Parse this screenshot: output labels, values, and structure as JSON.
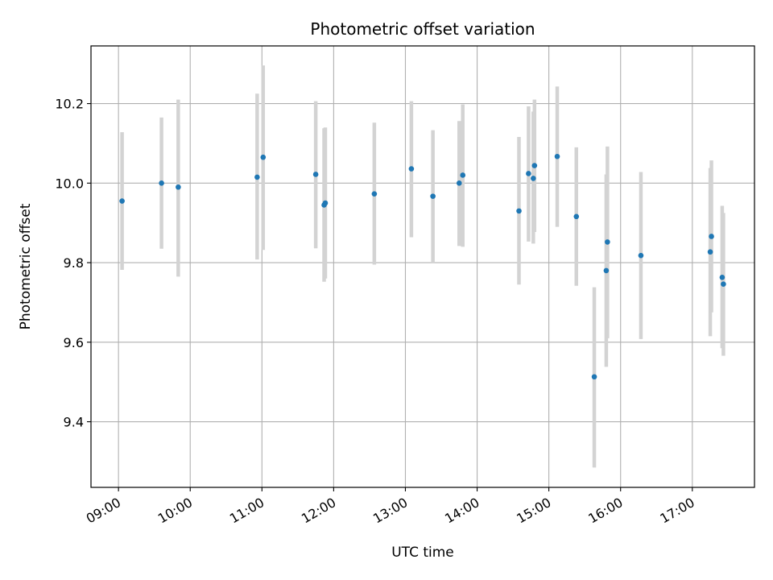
{
  "chart_data": {
    "type": "scatter",
    "title": "Photometric offset variation",
    "xlabel": "UTC time",
    "ylabel": "Photometric offset",
    "x_ticks": [
      "09:00",
      "10:00",
      "11:00",
      "12:00",
      "13:00",
      "14:00",
      "15:00",
      "16:00",
      "17:00"
    ],
    "y_ticks": [
      "9.4",
      "9.6",
      "9.8",
      "10.0",
      "10.2"
    ],
    "xlim": [
      "08:37",
      "17:52"
    ],
    "ylim": [
      9.235,
      10.345
    ],
    "grid": true,
    "colors": {
      "point": "#1f77b4",
      "errorbar": "#d3d3d3",
      "grid": "#b0b0b0"
    },
    "points": [
      {
        "x": "09:03",
        "y": 9.955,
        "low": 9.782,
        "high": 10.128
      },
      {
        "x": "09:36",
        "y": 10.0,
        "low": 9.835,
        "high": 10.165
      },
      {
        "x": "09:50",
        "y": 9.99,
        "low": 9.765,
        "high": 10.21
      },
      {
        "x": "10:56",
        "y": 10.015,
        "low": 9.808,
        "high": 10.225
      },
      {
        "x": "11:01",
        "y": 10.065,
        "low": 9.832,
        "high": 10.296
      },
      {
        "x": "11:45",
        "y": 10.022,
        "low": 9.836,
        "high": 10.206
      },
      {
        "x": "11:52",
        "y": 9.945,
        "low": 9.752,
        "high": 10.138
      },
      {
        "x": "11:53",
        "y": 9.95,
        "low": 9.76,
        "high": 10.14
      },
      {
        "x": "12:34",
        "y": 9.973,
        "low": 9.795,
        "high": 10.152
      },
      {
        "x": "13:05",
        "y": 10.036,
        "low": 9.864,
        "high": 10.206
      },
      {
        "x": "13:23",
        "y": 9.967,
        "low": 9.8,
        "high": 10.133
      },
      {
        "x": "13:45",
        "y": 10.0,
        "low": 9.842,
        "high": 10.156
      },
      {
        "x": "13:48",
        "y": 10.02,
        "low": 9.84,
        "high": 10.198
      },
      {
        "x": "14:35",
        "y": 9.93,
        "low": 9.745,
        "high": 10.116
      },
      {
        "x": "14:43",
        "y": 10.024,
        "low": 9.853,
        "high": 10.193
      },
      {
        "x": "14:47",
        "y": 10.012,
        "low": 9.848,
        "high": 10.18
      },
      {
        "x": "14:48",
        "y": 10.044,
        "low": 9.877,
        "high": 10.21
      },
      {
        "x": "15:07",
        "y": 10.067,
        "low": 9.89,
        "high": 10.243
      },
      {
        "x": "15:23",
        "y": 9.916,
        "low": 9.742,
        "high": 10.09
      },
      {
        "x": "15:38",
        "y": 9.513,
        "low": 9.285,
        "high": 9.738
      },
      {
        "x": "15:48",
        "y": 9.78,
        "low": 9.538,
        "high": 10.022
      },
      {
        "x": "15:49",
        "y": 9.852,
        "low": 9.61,
        "high": 10.092
      },
      {
        "x": "16:17",
        "y": 9.818,
        "low": 9.608,
        "high": 10.028
      },
      {
        "x": "17:15",
        "y": 9.827,
        "low": 9.615,
        "high": 10.038
      },
      {
        "x": "17:16",
        "y": 9.866,
        "low": 9.675,
        "high": 10.057
      },
      {
        "x": "17:25",
        "y": 9.763,
        "low": 9.585,
        "high": 9.943
      },
      {
        "x": "17:26",
        "y": 9.746,
        "low": 9.566,
        "high": 9.925
      }
    ]
  }
}
